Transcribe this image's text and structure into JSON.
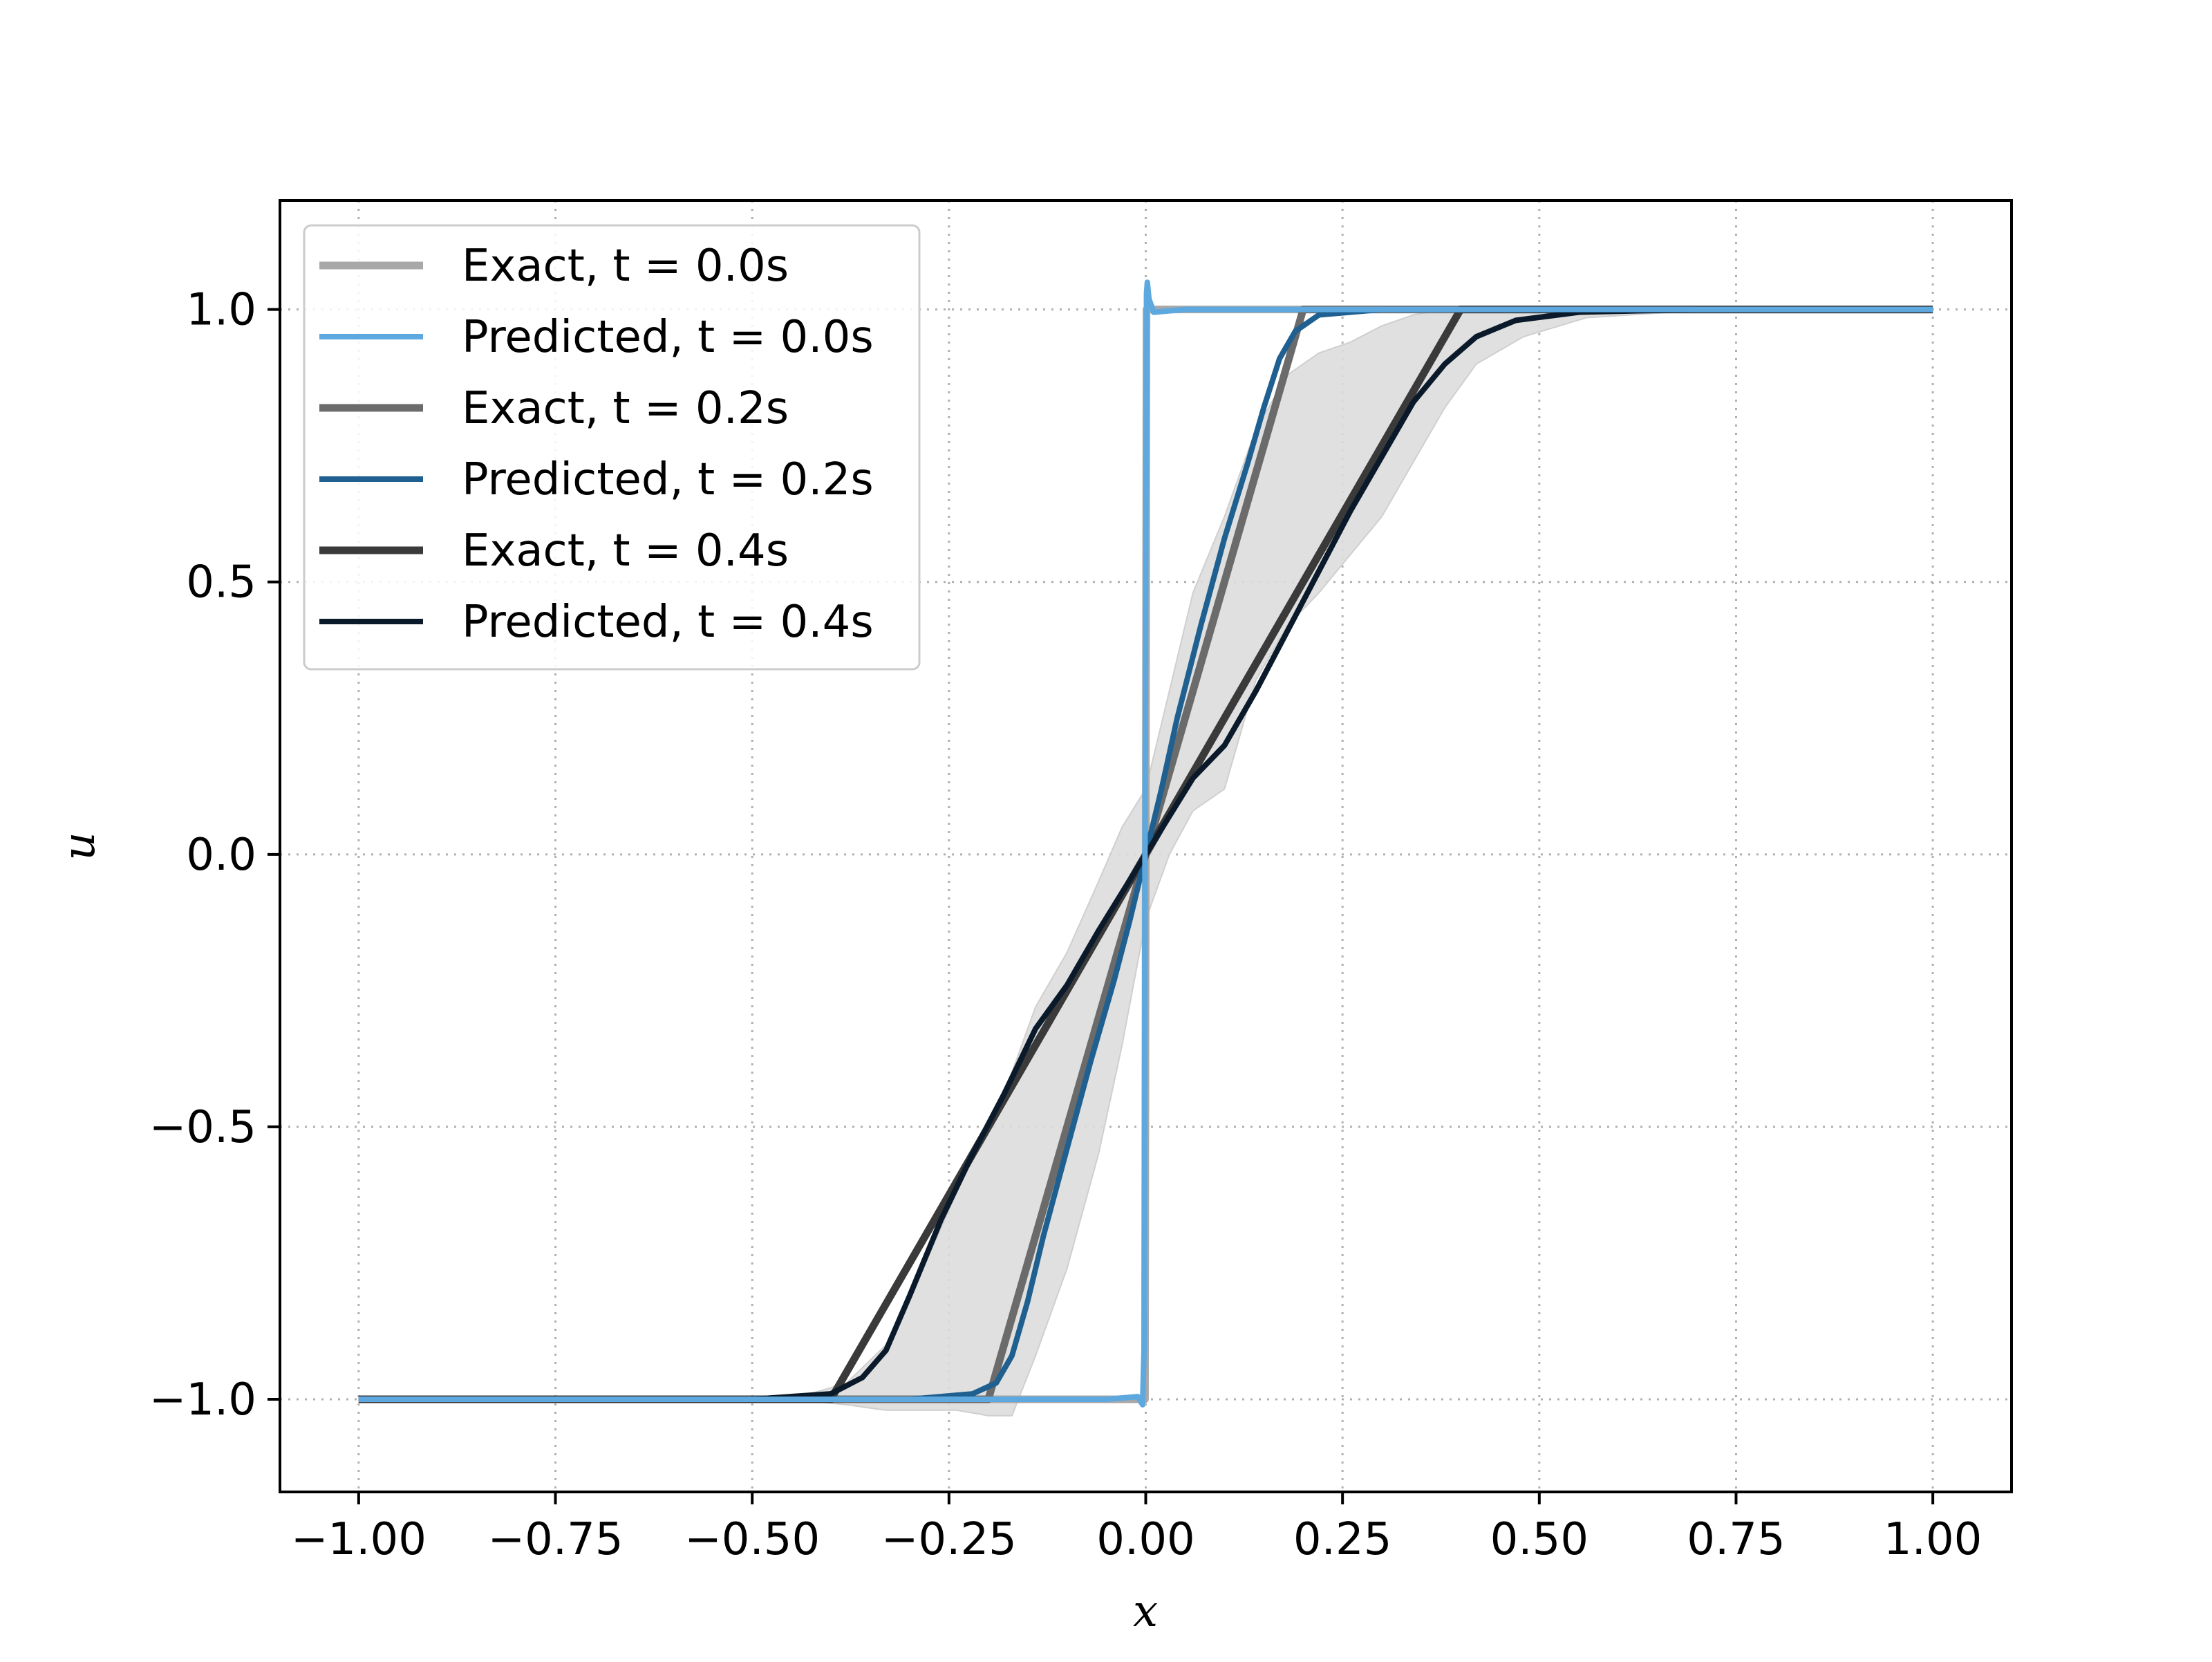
{
  "chart_data": {
    "type": "line",
    "title": "",
    "xlabel": "x",
    "ylabel": "u",
    "xlim": [
      -1.1,
      1.1
    ],
    "ylim": [
      -1.17,
      1.2
    ],
    "xticks": [
      -1.0,
      -0.75,
      -0.5,
      -0.25,
      0.0,
      0.25,
      0.5,
      0.75,
      1.0
    ],
    "xtick_labels": [
      "−1.00",
      "−0.75",
      "−0.50",
      "−0.25",
      "0.00",
      "0.25",
      "0.50",
      "0.75",
      "1.00"
    ],
    "yticks": [
      -1.0,
      -0.5,
      0.0,
      0.5,
      1.0
    ],
    "ytick_labels": [
      "−1.0",
      "−0.5",
      "0.0",
      "0.5",
      "1.0"
    ],
    "grid": true,
    "legend_position": "upper-left",
    "series": [
      {
        "name": "Exact, t = 0.0s",
        "color": "#a8a8a8",
        "x": [
          -1.0,
          -0.001,
          0.001,
          1.0
        ],
        "y": [
          -1.0,
          -1.0,
          1.0,
          1.0
        ]
      },
      {
        "name": "Predicted, t = 0.0s",
        "color": "#5da8de",
        "x": [
          -1.0,
          -0.05,
          -0.01,
          -0.004,
          -0.002,
          -0.001,
          0.0,
          0.001,
          0.002,
          0.004,
          0.01,
          0.05,
          1.0
        ],
        "y": [
          -1.0,
          -1.0,
          -0.995,
          -1.01,
          -0.9,
          0.0,
          0.5,
          1.03,
          1.05,
          1.02,
          0.995,
          1.0,
          1.0
        ]
      },
      {
        "name": "Exact, t = 0.2s",
        "color": "#6b6b6b",
        "x": [
          -1.0,
          -0.2,
          0.2,
          1.0
        ],
        "y": [
          -1.0,
          -1.0,
          1.0,
          1.0
        ]
      },
      {
        "name": "Predicted, t = 0.2s",
        "color": "#1f6091",
        "x": [
          -1.0,
          -0.3,
          -0.22,
          -0.19,
          -0.17,
          -0.15,
          -0.13,
          -0.1,
          -0.07,
          -0.04,
          -0.02,
          0.0,
          0.02,
          0.04,
          0.07,
          0.1,
          0.13,
          0.15,
          0.17,
          0.19,
          0.22,
          0.3,
          0.5,
          1.0
        ],
        "y": [
          -1.0,
          -1.0,
          -0.99,
          -0.97,
          -0.92,
          -0.82,
          -0.7,
          -0.54,
          -0.38,
          -0.23,
          -0.12,
          0.0,
          0.12,
          0.25,
          0.42,
          0.58,
          0.72,
          0.82,
          0.91,
          0.96,
          0.99,
          1.0,
          1.0,
          1.0
        ]
      },
      {
        "name": "Exact, t = 0.4s",
        "color": "#3a3a3a",
        "x": [
          -1.0,
          -0.4,
          0.4,
          1.0
        ],
        "y": [
          -1.0,
          -1.0,
          1.0,
          1.0
        ]
      },
      {
        "name": "Predicted, t = 0.4s",
        "color": "#0b1a2a",
        "x": [
          -1.0,
          -0.5,
          -0.4,
          -0.36,
          -0.33,
          -0.3,
          -0.26,
          -0.22,
          -0.18,
          -0.14,
          -0.1,
          -0.06,
          -0.03,
          0.0,
          0.03,
          0.06,
          0.1,
          0.14,
          0.18,
          0.22,
          0.26,
          0.3,
          0.34,
          0.38,
          0.42,
          0.47,
          0.55,
          0.7,
          1.0
        ],
        "y": [
          -1.0,
          -1.0,
          -0.99,
          -0.96,
          -0.91,
          -0.81,
          -0.67,
          -0.55,
          -0.44,
          -0.32,
          -0.24,
          -0.14,
          -0.07,
          0.0,
          0.07,
          0.14,
          0.2,
          0.3,
          0.41,
          0.52,
          0.63,
          0.73,
          0.83,
          0.9,
          0.95,
          0.98,
          0.995,
          1.0,
          1.0
        ]
      }
    ],
    "uncertainty_band": {
      "color": "#dddddd",
      "x": [
        -1.0,
        -0.45,
        -0.38,
        -0.33,
        -0.28,
        -0.24,
        -0.2,
        -0.17,
        -0.14,
        -0.1,
        -0.06,
        -0.03,
        0.0,
        0.03,
        0.06,
        0.1,
        0.14,
        0.18,
        0.22,
        0.26,
        0.3,
        0.34,
        0.38,
        0.42,
        0.48,
        0.56,
        0.7,
        1.0
      ],
      "lower": [
        -1.0,
        -1.0,
        -1.01,
        -1.02,
        -1.02,
        -1.02,
        -1.03,
        -1.03,
        -0.92,
        -0.76,
        -0.55,
        -0.35,
        -0.12,
        0.0,
        0.08,
        0.12,
        0.32,
        0.42,
        0.48,
        0.55,
        0.62,
        0.72,
        0.82,
        0.9,
        0.95,
        0.985,
        0.998,
        1.0
      ],
      "upper": [
        -1.0,
        -1.0,
        -0.97,
        -0.9,
        -0.75,
        -0.62,
        -0.5,
        -0.4,
        -0.28,
        -0.18,
        -0.05,
        0.05,
        0.12,
        0.3,
        0.48,
        0.62,
        0.78,
        0.88,
        0.92,
        0.94,
        0.97,
        0.99,
        1.0,
        1.0,
        1.0,
        1.0,
        1.0,
        1.0
      ]
    }
  }
}
